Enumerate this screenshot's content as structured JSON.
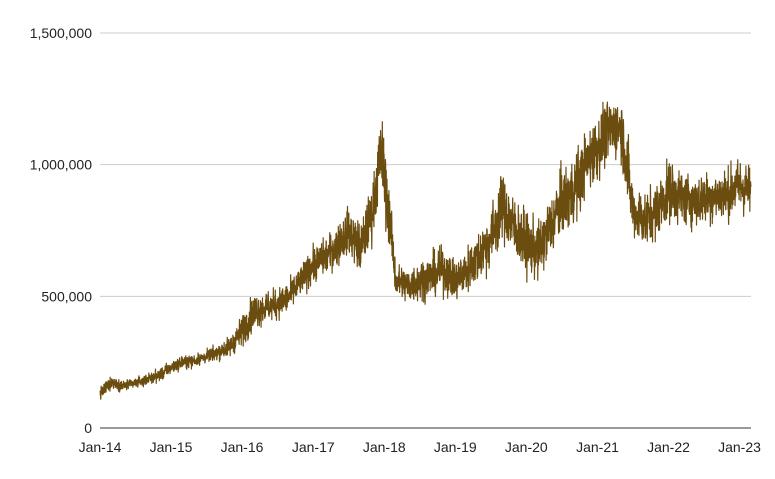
{
  "chart_data": {
    "type": "line",
    "title": "",
    "xlabel": "",
    "ylabel": "",
    "grid": true,
    "legend": "none",
    "line_color": "#6b4d0f",
    "grid_color": "#cccccc",
    "axis_color": "#333333",
    "xlim": [
      "2014-01-01",
      "2023-03-01"
    ],
    "ylim": [
      0,
      1500000
    ],
    "x_ticks": [
      {
        "date": "2014-01-01",
        "label": "Jan-14"
      },
      {
        "date": "2015-01-01",
        "label": "Jan-15"
      },
      {
        "date": "2016-01-01",
        "label": "Jan-16"
      },
      {
        "date": "2017-01-01",
        "label": "Jan-17"
      },
      {
        "date": "2018-01-01",
        "label": "Jan-18"
      },
      {
        "date": "2019-01-01",
        "label": "Jan-19"
      },
      {
        "date": "2020-01-01",
        "label": "Jan-20"
      },
      {
        "date": "2021-01-01",
        "label": "Jan-21"
      },
      {
        "date": "2022-01-01",
        "label": "Jan-22"
      },
      {
        "date": "2023-01-01",
        "label": "Jan-23"
      }
    ],
    "y_ticks": [
      {
        "value": 0,
        "label": "0"
      },
      {
        "value": 500000,
        "label": "500,000"
      },
      {
        "value": 1000000,
        "label": "1,000,000"
      },
      {
        "value": 1500000,
        "label": "1,500,000"
      }
    ],
    "series": [
      {
        "x": [
          "2014-01-01",
          "2014-03-01",
          "2014-05-01",
          "2014-07-01",
          "2014-09-01",
          "2014-11-01",
          "2015-01-01",
          "2015-03-01",
          "2015-05-01",
          "2015-07-01",
          "2015-09-01",
          "2015-11-01",
          "2016-01-01",
          "2016-03-01",
          "2016-05-01",
          "2016-07-01",
          "2016-09-01",
          "2016-11-01",
          "2017-01-01",
          "2017-03-01",
          "2017-05-01",
          "2017-07-01",
          "2017-09-01",
          "2017-11-01",
          "2017-12-15",
          "2018-01-01",
          "2018-02-01",
          "2018-03-01",
          "2018-05-01",
          "2018-07-01",
          "2018-09-01",
          "2018-11-01",
          "2019-01-01",
          "2019-03-01",
          "2019-05-01",
          "2019-07-01",
          "2019-09-01",
          "2019-11-01",
          "2020-01-01",
          "2020-03-01",
          "2020-05-01",
          "2020-07-01",
          "2020-09-01",
          "2020-11-01",
          "2021-01-01",
          "2021-03-01",
          "2021-05-01",
          "2021-06-01",
          "2021-07-01",
          "2021-09-01",
          "2021-11-01",
          "2022-01-01",
          "2022-03-01",
          "2022-05-01",
          "2022-07-01",
          "2022-09-01",
          "2022-11-01",
          "2023-01-01",
          "2023-03-01"
        ],
        "y": [
          130000,
          175000,
          160000,
          170000,
          185000,
          200000,
          230000,
          250000,
          255000,
          270000,
          290000,
          310000,
          370000,
          440000,
          460000,
          470000,
          500000,
          560000,
          620000,
          650000,
          690000,
          750000,
          680000,
          820000,
          1050000,
          950000,
          780000,
          560000,
          540000,
          560000,
          580000,
          600000,
          560000,
          600000,
          650000,
          720000,
          840000,
          760000,
          700000,
          670000,
          760000,
          860000,
          900000,
          1000000,
          1070000,
          1130000,
          1150000,
          1000000,
          830000,
          790000,
          830000,
          900000,
          880000,
          860000,
          870000,
          880000,
          890000,
          920000,
          900000
        ],
        "volatility": [
          25000,
          25000,
          20000,
          20000,
          20000,
          25000,
          25000,
          25000,
          25000,
          25000,
          30000,
          40000,
          60000,
          70000,
          60000,
          60000,
          60000,
          60000,
          70000,
          70000,
          80000,
          90000,
          100000,
          110000,
          150000,
          170000,
          100000,
          70000,
          70000,
          80000,
          80000,
          90000,
          80000,
          90000,
          100000,
          120000,
          130000,
          120000,
          120000,
          110000,
          120000,
          130000,
          140000,
          120000,
          130000,
          120000,
          120000,
          150000,
          100000,
          110000,
          110000,
          120000,
          110000,
          100000,
          100000,
          100000,
          100000,
          110000,
          100000
        ]
      }
    ]
  }
}
